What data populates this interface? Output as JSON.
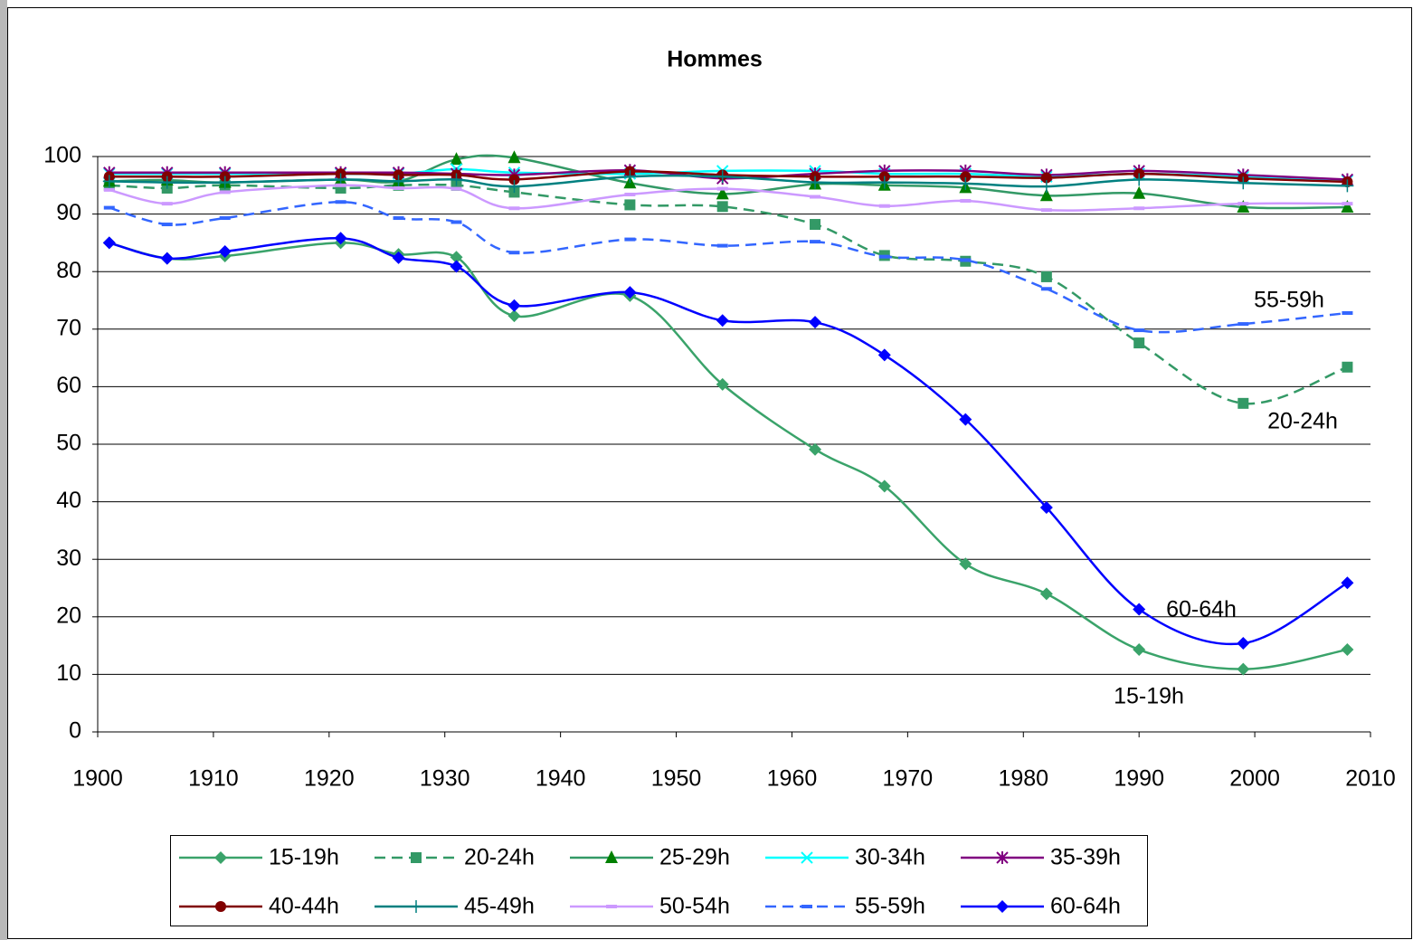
{
  "chart_data": {
    "type": "line",
    "title": "Hommes",
    "x": [
      1901,
      1906,
      1911,
      1921,
      1926,
      1931,
      1936,
      1946,
      1954,
      1962,
      1968,
      1975,
      1982,
      1990,
      1999,
      2008
    ],
    "xlim": [
      1900,
      2010
    ],
    "xticks": [
      1900,
      1910,
      1920,
      1930,
      1940,
      1950,
      1960,
      1970,
      1980,
      1990,
      2000,
      2010
    ],
    "ylim": [
      0,
      100
    ],
    "yticks": [
      0,
      10,
      20,
      30,
      40,
      50,
      60,
      70,
      80,
      90,
      100
    ],
    "grid": true,
    "legend": "bottom",
    "annotations": [
      "55-59h",
      "20-24h",
      "60-64h",
      "15-19h"
    ],
    "series": [
      {
        "name": "15-19h",
        "color": "#3aa36a",
        "marker": "diamond",
        "dash": "solid",
        "values": [
          85,
          82.3,
          82.7,
          85,
          83,
          82.5,
          72.3,
          75.8,
          60.4,
          49.1,
          42.7,
          29.2,
          24,
          14.3,
          10.9,
          14.3
        ]
      },
      {
        "name": "20-24h",
        "color": "#339966",
        "marker": "square",
        "dash": "dashed",
        "values": [
          95,
          94.5,
          95,
          94.5,
          95,
          95,
          93.8,
          91.6,
          91.3,
          88.2,
          82.8,
          81.8,
          79.1,
          67.6,
          57.1,
          63.4
        ]
      },
      {
        "name": "25-29h",
        "color": "#339966",
        "marker_color": "#008000",
        "marker": "triangle",
        "dash": "solid",
        "values": [
          95.7,
          95.9,
          95.5,
          96,
          95.7,
          99.5,
          99.8,
          95.4,
          93.5,
          95.2,
          95,
          94.6,
          93.2,
          93.6,
          91.2,
          91.2
        ]
      },
      {
        "name": "30-34h",
        "color": "#00ffff",
        "marker": "x",
        "dash": "solid",
        "values": [
          97,
          97,
          97,
          97,
          97,
          97.8,
          97.2,
          97,
          97.5,
          97.5,
          97,
          97,
          96.5,
          97,
          96.5,
          95.8
        ]
      },
      {
        "name": "35-39h",
        "color": "#800080",
        "marker": "star",
        "dash": "solid",
        "values": [
          97.2,
          97.2,
          97.2,
          97.2,
          97.2,
          97,
          96.8,
          97.6,
          96.2,
          97,
          97.5,
          97.5,
          96.8,
          97.5,
          96.8,
          96
        ]
      },
      {
        "name": "40-44h",
        "color": "#800000",
        "marker": "circle",
        "dash": "solid",
        "values": [
          96.5,
          96.5,
          96.5,
          97,
          96.8,
          96.8,
          96,
          97.4,
          96.8,
          96.5,
          96.5,
          96.5,
          96.3,
          97,
          96.2,
          95.6
        ]
      },
      {
        "name": "45-49h",
        "color": "#008080",
        "marker": "plus",
        "dash": "solid",
        "values": [
          95.7,
          95.5,
          95.5,
          96,
          95.7,
          96,
          94.8,
          96.5,
          96.5,
          95.5,
          95.5,
          95.3,
          94.8,
          96,
          95.4,
          94.9
        ]
      },
      {
        "name": "50-54h",
        "color": "#cc99ff",
        "marker": "dash",
        "dash": "solid",
        "values": [
          94.2,
          91.8,
          93.8,
          95,
          94.5,
          94.4,
          91,
          93.4,
          94.4,
          93,
          91.4,
          92.3,
          90.7,
          91,
          91.8,
          91.8
        ]
      },
      {
        "name": "55-59h",
        "color": "#3366ff",
        "marker": "dash",
        "dash": "dashed",
        "values": [
          91.1,
          88.2,
          89.3,
          92.1,
          89.3,
          88.6,
          83.3,
          85.6,
          84.5,
          85.2,
          82.6,
          82,
          77,
          69.8,
          70.9,
          72.8
        ]
      },
      {
        "name": "60-64h",
        "color": "#0000ff",
        "marker": "diamond",
        "dash": "solid",
        "values": [
          85,
          82.3,
          83.5,
          85.8,
          82.4,
          80.9,
          74.1,
          76.4,
          71.5,
          71.2,
          65.5,
          54.3,
          39,
          21.3,
          15.4,
          25.9
        ]
      }
    ]
  }
}
